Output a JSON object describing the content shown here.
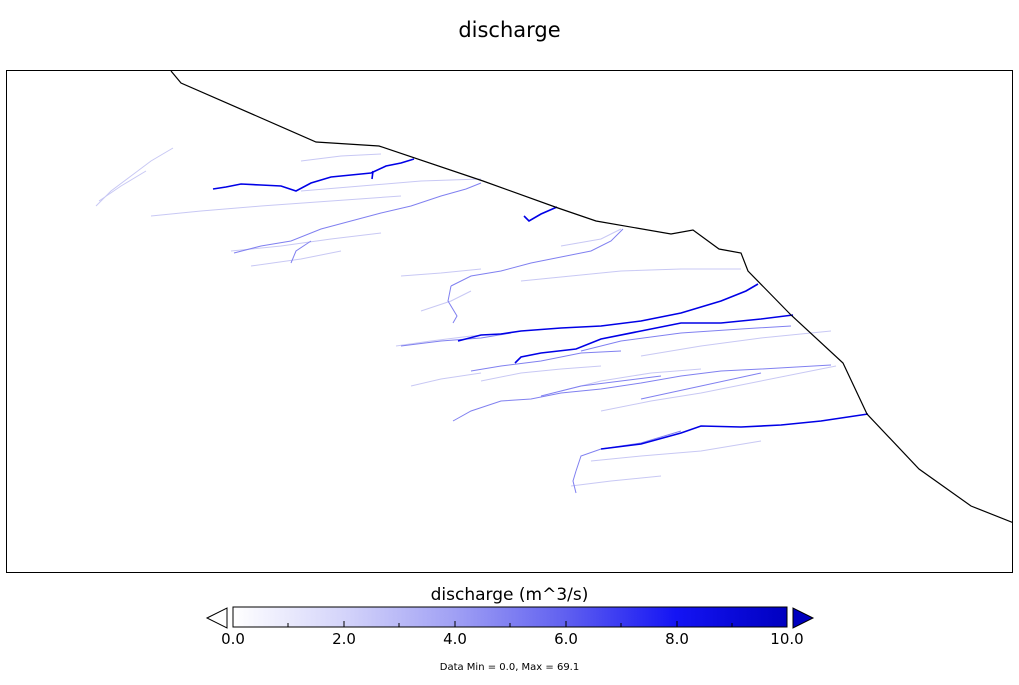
{
  "title": "discharge",
  "colorbar": {
    "label": "discharge (m^3/s)",
    "ticks": [
      "0.0",
      "2.0",
      "4.0",
      "6.0",
      "8.0",
      "10.0"
    ],
    "min": 0.0,
    "max": 10.0,
    "color_low": "#ffffff",
    "color_high": "#0000cc",
    "extend": "both"
  },
  "data_note": "Data Min = 0.0, Max = 69.1",
  "colors": {
    "coastline": "#000000",
    "river": "#0000ff"
  }
}
